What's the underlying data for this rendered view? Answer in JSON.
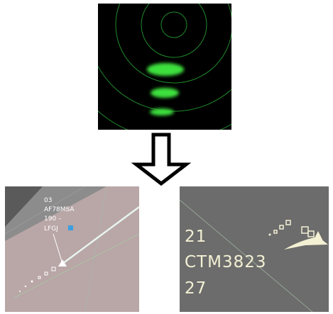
{
  "left_panel": {
    "label_lines": [
      "03",
      "AF78MSA",
      "190 –",
      "LFGJ"
    ]
  },
  "right_panel": {
    "label_lines": [
      "21",
      "CTM3823",
      "27"
    ]
  }
}
